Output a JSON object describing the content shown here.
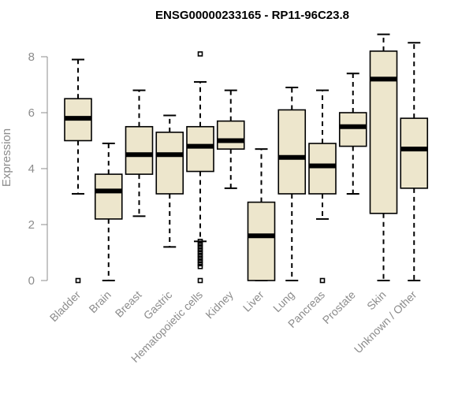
{
  "chart_data": {
    "type": "boxplot",
    "title": "ENSG00000233165 - RP11-96C23.8",
    "xlabel": "",
    "ylabel": "Expression",
    "ylim": [
      0,
      8.8
    ],
    "yticks": [
      0,
      2,
      4,
      6,
      8
    ],
    "categories": [
      "Bladder",
      "Brain",
      "Breast",
      "Gastric",
      "Hematopoietic cells",
      "Kidney",
      "Liver",
      "Lung",
      "Pancreas",
      "Prostate",
      "Skin",
      "Unknown / Other"
    ],
    "series": [
      {
        "name": "Bladder",
        "whisker_low": 3.1,
        "q1": 5.0,
        "median": 5.8,
        "q3": 6.5,
        "whisker_high": 7.9,
        "outliers": [
          0.0
        ]
      },
      {
        "name": "Brain",
        "whisker_low": 0.0,
        "q1": 2.2,
        "median": 3.2,
        "q3": 3.8,
        "whisker_high": 4.9,
        "outliers": []
      },
      {
        "name": "Breast",
        "whisker_low": 2.3,
        "q1": 3.8,
        "median": 4.5,
        "q3": 5.5,
        "whisker_high": 6.8,
        "outliers": []
      },
      {
        "name": "Gastric",
        "whisker_low": 1.2,
        "q1": 3.1,
        "median": 4.5,
        "q3": 5.3,
        "whisker_high": 5.9,
        "outliers": []
      },
      {
        "name": "Hematopoietic cells",
        "whisker_low": 1.4,
        "q1": 3.9,
        "median": 4.8,
        "q3": 5.5,
        "whisker_high": 7.1,
        "outliers": [
          8.1,
          1.4,
          1.3,
          1.2,
          1.1,
          1.0,
          0.9,
          0.8,
          0.7,
          0.6,
          0.5,
          0.0
        ]
      },
      {
        "name": "Kidney",
        "whisker_low": 3.3,
        "q1": 4.7,
        "median": 5.0,
        "q3": 5.7,
        "whisker_high": 6.8,
        "outliers": []
      },
      {
        "name": "Liver",
        "whisker_low": 0.0,
        "q1": 0.0,
        "median": 1.6,
        "q3": 2.8,
        "whisker_high": 4.7,
        "outliers": []
      },
      {
        "name": "Lung",
        "whisker_low": 0.0,
        "q1": 3.1,
        "median": 4.4,
        "q3": 6.1,
        "whisker_high": 6.9,
        "outliers": []
      },
      {
        "name": "Pancreas",
        "whisker_low": 2.2,
        "q1": 3.1,
        "median": 4.1,
        "q3": 4.9,
        "whisker_high": 6.8,
        "outliers": [
          0.0
        ]
      },
      {
        "name": "Prostate",
        "whisker_low": 3.1,
        "q1": 4.8,
        "median": 5.5,
        "q3": 6.0,
        "whisker_high": 7.4,
        "outliers": []
      },
      {
        "name": "Skin",
        "whisker_low": 0.0,
        "q1": 2.4,
        "median": 7.2,
        "q3": 8.2,
        "whisker_high": 8.8,
        "outliers": []
      },
      {
        "name": "Unknown / Other",
        "whisker_low": 0.0,
        "q1": 3.3,
        "median": 4.7,
        "q3": 5.8,
        "whisker_high": 8.5,
        "outliers": []
      }
    ],
    "grid": false,
    "legend": "none",
    "colors": {
      "box_fill": "#ede6cc",
      "stroke": "#000000",
      "axis": "#8c8c8c"
    }
  }
}
